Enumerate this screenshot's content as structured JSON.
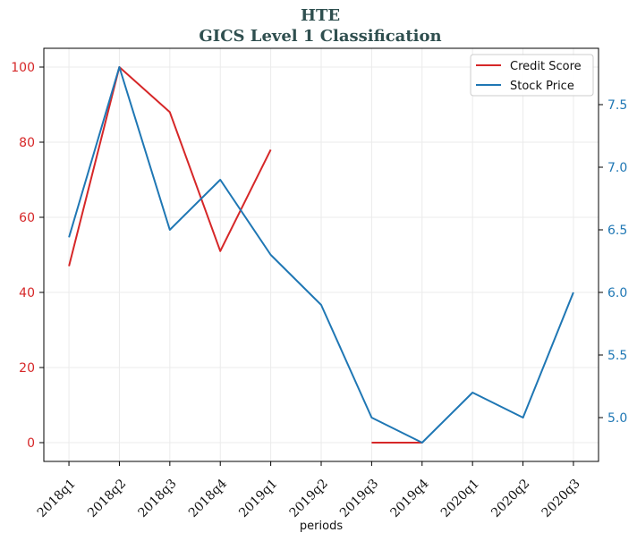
{
  "chart_data": {
    "type": "line",
    "title": "HTE",
    "subtitle": "GICS Level 1 Classification",
    "xlabel": "periods",
    "categories": [
      "2018q1",
      "2018q2",
      "2018q3",
      "2018q4",
      "2019q1",
      "2019q2",
      "2019q3",
      "2019q4",
      "2020q1",
      "2020q2",
      "2020q3"
    ],
    "grid": true,
    "legend_position": "top-right",
    "series": [
      {
        "name": "Credit Score",
        "axis": "left",
        "color": "#d62728",
        "values": [
          47,
          100,
          88,
          51,
          78,
          null,
          0,
          0,
          null,
          null,
          null
        ]
      },
      {
        "name": "Stock Price",
        "axis": "right",
        "color": "#1f77b4",
        "values": [
          6.44,
          7.8,
          6.5,
          6.9,
          6.3,
          5.9,
          5.0,
          4.8,
          5.2,
          5.0,
          6.0
        ]
      }
    ],
    "y_left": {
      "ylim": [
        -5,
        105
      ],
      "ticks": [
        0,
        20,
        40,
        60,
        80,
        100
      ],
      "color": "#d62728"
    },
    "y_right": {
      "ylim": [
        4.65,
        7.95
      ],
      "ticks": [
        "5.0",
        "5.5",
        "6.0",
        "6.5",
        "7.0",
        "7.5"
      ],
      "color": "#1f77b4"
    }
  }
}
